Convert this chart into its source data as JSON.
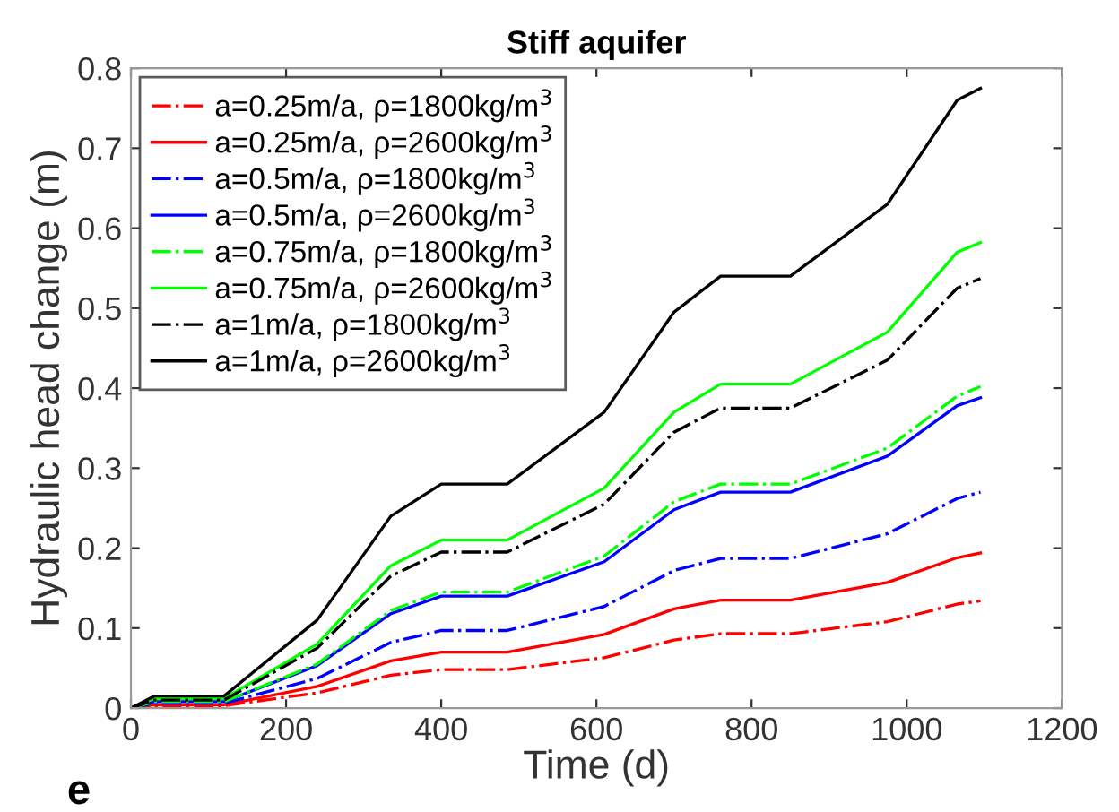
{
  "chart_data": {
    "type": "line",
    "title": "Stiff aquifer",
    "xlabel": "Time (d)",
    "ylabel": "Hydraulic head change (m)",
    "annotations": [
      "e"
    ],
    "xlim": [
      0,
      1200
    ],
    "xticks": [
      0,
      200,
      400,
      600,
      800,
      1000,
      1200
    ],
    "ylim": [
      0,
      0.8
    ],
    "yticks": [
      0,
      0.1,
      0.2,
      0.3,
      0.4,
      0.5,
      0.6,
      0.7,
      0.8
    ],
    "grid": false,
    "legend": "top left",
    "marker": "none",
    "x": [
      0,
      30,
      120,
      240,
      335,
      400,
      485,
      610,
      700,
      760,
      850,
      975,
      1065,
      1095
    ],
    "series": [
      {
        "name": "a=0.25m/a, ρ=1800kg/m$^{3}$",
        "color": "#ff0000",
        "line_style": "dashdot",
        "values": [
          0,
          0.003,
          0.003,
          0.019,
          0.041,
          0.048,
          0.048,
          0.063,
          0.085,
          0.093,
          0.093,
          0.108,
          0.13,
          0.134
        ]
      },
      {
        "name": "a=0.25m/a, ρ=2600kg/m$^{3}$",
        "color": "#ff0000",
        "line_style": "solid",
        "values": [
          0,
          0.004,
          0.004,
          0.027,
          0.059,
          0.07,
          0.07,
          0.092,
          0.124,
          0.135,
          0.135,
          0.157,
          0.188,
          0.194
        ]
      },
      {
        "name": "a=0.5m/a, ρ=1800kg/m$^{3}$",
        "color": "#0000ff",
        "line_style": "dashdot",
        "values": [
          0,
          0.006,
          0.006,
          0.037,
          0.082,
          0.097,
          0.097,
          0.127,
          0.172,
          0.187,
          0.187,
          0.218,
          0.262,
          0.27
        ]
      },
      {
        "name": "a=0.5m/a, ρ=2600kg/m$^{3}$",
        "color": "#0000ff",
        "line_style": "solid",
        "values": [
          0,
          0.008,
          0.008,
          0.053,
          0.118,
          0.14,
          0.14,
          0.183,
          0.248,
          0.27,
          0.27,
          0.315,
          0.378,
          0.388
        ]
      },
      {
        "name": "a=0.75m/a, ρ=1800kg/m$^{3}$",
        "color": "#00ff00",
        "line_style": "dashdot",
        "values": [
          0,
          0.008,
          0.008,
          0.055,
          0.122,
          0.145,
          0.145,
          0.19,
          0.258,
          0.28,
          0.28,
          0.325,
          0.39,
          0.402
        ]
      },
      {
        "name": "a=0.75m/a, ρ=2600kg/m$^{3}$",
        "color": "#00ff00",
        "line_style": "solid",
        "values": [
          0,
          0.012,
          0.012,
          0.08,
          0.178,
          0.21,
          0.21,
          0.275,
          0.37,
          0.405,
          0.405,
          0.47,
          0.57,
          0.582
        ]
      },
      {
        "name": "a=1m/a, ρ=1800kg/m$^{3}$",
        "color": "#000000",
        "line_style": "dashdot",
        "values": [
          0,
          0.01,
          0.01,
          0.075,
          0.165,
          0.195,
          0.195,
          0.255,
          0.345,
          0.375,
          0.375,
          0.435,
          0.525,
          0.537
        ]
      },
      {
        "name": "a=1m/a, ρ=2600kg/m$^{3}$",
        "color": "#000000",
        "line_style": "solid",
        "values": [
          0,
          0.015,
          0.015,
          0.11,
          0.24,
          0.28,
          0.28,
          0.37,
          0.495,
          0.54,
          0.54,
          0.63,
          0.76,
          0.775
        ]
      }
    ]
  }
}
